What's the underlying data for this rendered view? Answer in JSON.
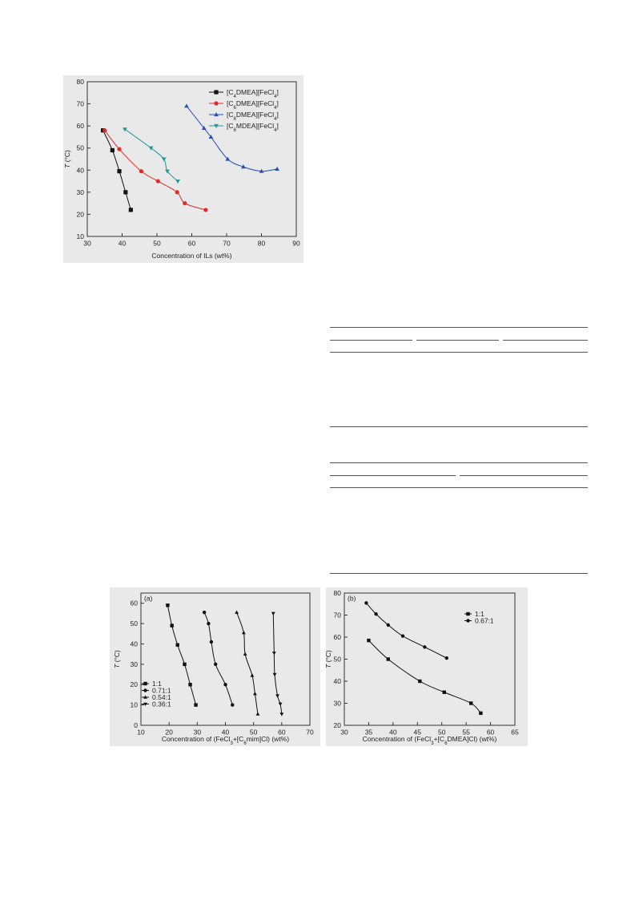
{
  "figures": {
    "fig1": {
      "chart_data": {
        "type": "line",
        "title": "",
        "xlabel": "Concentration of ILs (wt%)",
        "ylabel": "T (°C)",
        "xlim": [
          30,
          90
        ],
        "ylim": [
          10,
          80
        ],
        "xticks": [
          "30",
          "40",
          "50",
          "60",
          "70",
          "80",
          "90"
        ],
        "yticks": [
          "10",
          "20",
          "30",
          "40",
          "50",
          "60",
          "70",
          "80"
        ],
        "grid": false,
        "legend_position": "top-right",
        "series": [
          {
            "name": "[C4DMEA][FeCl4]",
            "marker": "square",
            "color": "#111111",
            "x": [
              34.5,
              37.2,
              39.2,
              41.0,
              42.5
            ],
            "y": [
              58,
              49,
              39.5,
              30,
              22
            ]
          },
          {
            "name": "[C6DMEA][FeCl4]",
            "marker": "circle",
            "color": "#e02a2a",
            "x": [
              35.0,
              39.2,
              45.5,
              50.3,
              55.8,
              58.0,
              64.0
            ],
            "y": [
              58,
              49.5,
              39.5,
              35,
              30,
              25,
              22
            ]
          },
          {
            "name": "[C8DMEA][FeCl4]",
            "marker": "triangle-up",
            "color": "#2a4fb5",
            "x": [
              58.5,
              63.5,
              65.5,
              70.3,
              74.8,
              80.0,
              84.5
            ],
            "y": [
              69,
              59,
              55,
              45,
              41.5,
              39.5,
              40.5
            ]
          },
          {
            "name": "[C6MDEA][FeCl4]",
            "marker": "triangle-down",
            "color": "#1f9a97",
            "x": [
              40.8,
              48.3,
              52.0,
              53.0,
              56.0
            ],
            "y": [
              58.5,
              50,
              45,
              39.5,
              35
            ]
          }
        ]
      }
    },
    "fig2a": {
      "chart_data": {
        "type": "line",
        "title": "",
        "panel_label": "(a)",
        "xlabel": "Concentration of (FeCl3+[C6mim]Cl) (wt%)",
        "ylabel": "T (°C)",
        "xlim": [
          10,
          70
        ],
        "ylim": [
          0,
          65
        ],
        "xticks": [
          "10",
          "20",
          "30",
          "40",
          "50",
          "60",
          "70"
        ],
        "yticks": [
          "0",
          "10",
          "20",
          "30",
          "40",
          "50",
          "60"
        ],
        "grid": false,
        "legend_position": "bottom-left",
        "series": [
          {
            "name": "1:1",
            "marker": "square",
            "x": [
              19.5,
              21.0,
              23.0,
              25.5,
              27.5,
              29.5
            ],
            "y": [
              59,
              49,
              39.5,
              30,
              20,
              10
            ]
          },
          {
            "name": "0.71:1",
            "marker": "circle",
            "x": [
              32.5,
              34.0,
              35.0,
              36.5,
              40.0,
              42.5
            ],
            "y": [
              55.5,
              50,
              41,
              30,
              20,
              10
            ]
          },
          {
            "name": "0.54:1",
            "marker": "triangle-up",
            "x": [
              44.0,
              46.5,
              47.0,
              49.5,
              50.5,
              51.5
            ],
            "y": [
              55.5,
              45.5,
              35,
              24.5,
              15.5,
              5.5
            ]
          },
          {
            "name": "0.36:1",
            "marker": "triangle-down",
            "x": [
              57.0,
              57.3,
              57.5,
              58.5,
              59.5,
              60.0
            ],
            "y": [
              55,
              35.5,
              25,
              14.5,
              10.5,
              5.5
            ]
          }
        ]
      }
    },
    "fig2b": {
      "chart_data": {
        "type": "line",
        "title": "",
        "panel_label": "(b)",
        "xlabel": "Concentration of (FeCl3+[C6DMEA]Cl) (wt%)",
        "ylabel": "T (°C)",
        "xlim": [
          30,
          65
        ],
        "ylim": [
          20,
          80
        ],
        "xticks": [
          "30",
          "35",
          "40",
          "45",
          "50",
          "55",
          "60",
          "65"
        ],
        "yticks": [
          "20",
          "30",
          "40",
          "50",
          "60",
          "70",
          "80"
        ],
        "grid": false,
        "legend_position": "top-right",
        "series": [
          {
            "name": "1:1",
            "marker": "square",
            "x": [
              35.0,
              39.0,
              45.5,
              50.5,
              56.0,
              58.0
            ],
            "y": [
              58.5,
              50,
              40,
              35,
              30,
              25.5
            ]
          },
          {
            "name": "0.67:1",
            "marker": "circle",
            "x": [
              34.5,
              36.5,
              39.0,
              42.0,
              46.5,
              51.0
            ],
            "y": [
              75.5,
              70.5,
              65.5,
              60.5,
              55.5,
              50.5
            ]
          }
        ]
      }
    }
  }
}
